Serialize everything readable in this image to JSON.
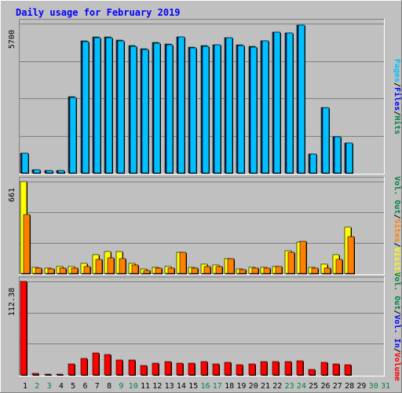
{
  "chart_data": {
    "type": "bar",
    "title": "Daily usage for February 2019",
    "categories": [
      "1",
      "2",
      "3",
      "4",
      "5",
      "6",
      "7",
      "8",
      "9",
      "10",
      "11",
      "12",
      "13",
      "14",
      "15",
      "16",
      "17",
      "18",
      "19",
      "20",
      "21",
      "22",
      "23",
      "24",
      "25",
      "26",
      "27",
      "28",
      "29",
      "30",
      "31"
    ],
    "weekend_days": [
      "2",
      "3",
      "9",
      "10",
      "16",
      "17",
      "23",
      "24",
      "30",
      "31"
    ],
    "panels": [
      {
        "id": "hits-files",
        "ymax_label": "5700",
        "ymax": 5700,
        "right_label": [
          {
            "text": "Hits",
            "color": "#008040"
          },
          {
            "text": "/",
            "color": "#000000"
          },
          {
            "text": "Files",
            "color": "#0000ff"
          },
          {
            "text": "/",
            "color": "#000000"
          },
          {
            "text": "Pages",
            "color": "#00c0ff"
          }
        ],
        "series": [
          {
            "name": "Hits",
            "color": "#008040",
            "values": [
              750,
              110,
              80,
              80,
              2900,
              5030,
              5180,
              5180,
              5060,
              4860,
              4730,
              4970,
              4910,
              5190,
              4800,
              4850,
              4900,
              5160,
              4880,
              4820,
              5040,
              5380,
              5350,
              5650,
              720,
              2500,
              1380,
              1150,
              0,
              0,
              0
            ]
          },
          {
            "name": "Files",
            "color": "#0000ff",
            "values": [
              740,
              105,
              75,
              75,
              2880,
              5010,
              5170,
              5170,
              5040,
              4840,
              4720,
              4950,
              4890,
              5180,
              4780,
              4840,
              4890,
              5150,
              4860,
              4800,
              5030,
              5370,
              5340,
              5640,
              710,
              2480,
              1370,
              1140,
              0,
              0,
              0
            ]
          },
          {
            "name": "Pages",
            "color": "#00c0ff",
            "values": [
              740,
              105,
              75,
              75,
              2880,
              5010,
              5170,
              5170,
              5040,
              4840,
              4720,
              4950,
              4890,
              5180,
              4780,
              4840,
              4890,
              5150,
              4860,
              4800,
              5030,
              5370,
              5340,
              5640,
              710,
              2480,
              1370,
              1140,
              0,
              0,
              0
            ]
          }
        ]
      },
      {
        "id": "visits-sites",
        "ymax_label": "661",
        "ymax": 661,
        "right_label": [
          {
            "text": "Visits",
            "color": "#ffff00"
          },
          {
            "text": "/",
            "color": "#000000"
          },
          {
            "text": "Sites",
            "color": "#ff8000"
          },
          {
            "text": "/",
            "color": "#000000"
          },
          {
            "text": "Vol. Out",
            "color": "#008040"
          }
        ],
        "series": [
          {
            "name": "Visits",
            "color": "#ffff00",
            "values": [
              661,
              45,
              40,
              50,
              50,
              75,
              135,
              160,
              160,
              75,
              35,
              45,
              50,
              150,
              45,
              70,
              60,
              105,
              35,
              45,
              45,
              50,
              165,
              225,
              45,
              65,
              135,
              335,
              0,
              0,
              0
            ]
          },
          {
            "name": "Sites",
            "color": "#ff8000",
            "values": [
              425,
              40,
              35,
              40,
              40,
              50,
              100,
              115,
              110,
              60,
              25,
              40,
              40,
              150,
              40,
              50,
              50,
              105,
              30,
              40,
              40,
              50,
              155,
              230,
              40,
              40,
              100,
              265,
              0,
              0,
              0
            ]
          }
        ]
      },
      {
        "id": "volume",
        "ymax_label": "112.38",
        "ymax": 112.38,
        "right_label": [
          {
            "text": "Volume",
            "color": "#ff0000"
          },
          {
            "text": "/",
            "color": "#000000"
          },
          {
            "text": "Vol. In",
            "color": "#0000ff"
          },
          {
            "text": "/",
            "color": "#000000"
          },
          {
            "text": "Vol. Out",
            "color": "#008040"
          }
        ],
        "series": [
          {
            "name": "Volume",
            "color": "#ff0000",
            "values": [
              112.38,
              1.5,
              1.2,
              1.2,
              13,
              20,
              26,
              25,
              18,
              18,
              11.5,
              14,
              16,
              14.5,
              14,
              16,
              13,
              15,
              12.5,
              13.5,
              16,
              16.5,
              16.5,
              17,
              7,
              15,
              13,
              12.5,
              0,
              0,
              0
            ]
          }
        ]
      }
    ]
  }
}
